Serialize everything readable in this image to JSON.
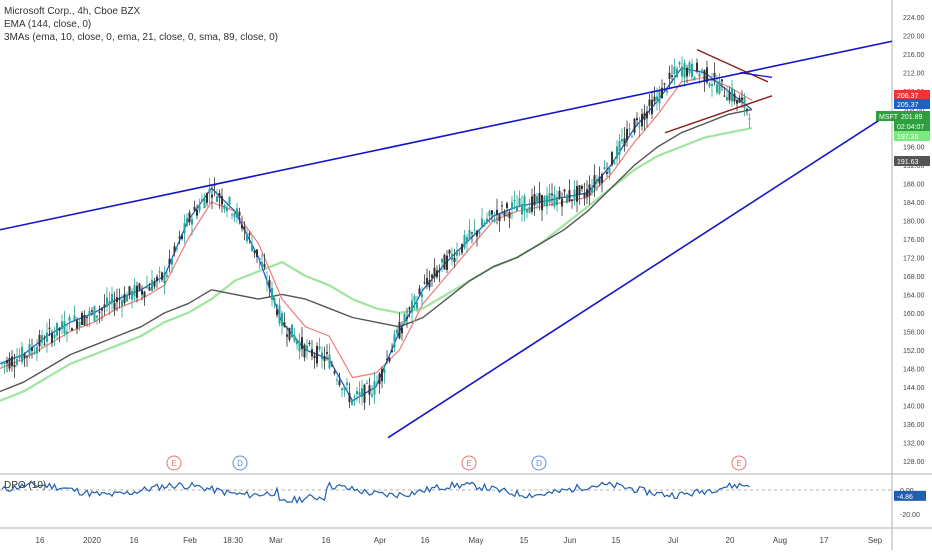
{
  "header": {
    "title": "Microsoft Corp., 4h, Cboe BZX",
    "ema_label": "EMA (144, close, 0)",
    "mas_label": "3MAs (ema, 10, close, 0, ema, 21, close, 0, sma, 89, close, 0)"
  },
  "dpo": {
    "label": "DPO (10)"
  },
  "colors": {
    "up": "#26a69a",
    "down": "#333333",
    "trendline": "#1515c8",
    "triangle": "#8b1a1a",
    "ema10": "#1e5fd0",
    "ema21": "#ef7b7b",
    "sma89": "#555555",
    "ema144": "#9fe59f",
    "dpo": "#1e5fb0"
  },
  "chart_data": {
    "type": "line",
    "title": "Microsoft Corp., 4h, Cboe BZX",
    "ylim": [
      126,
      226
    ],
    "y_ticks": [
      128,
      132,
      136,
      140,
      144,
      148,
      152,
      156,
      160,
      164,
      168,
      172,
      176,
      180,
      184,
      188,
      192,
      196,
      200,
      204,
      208,
      212,
      216,
      220,
      224
    ],
    "x_ticks": [
      "16",
      "2020",
      "16",
      "Feb",
      "18:30",
      "Mar",
      "16",
      "Apr",
      "16",
      "May",
      "15",
      "Jun",
      "15",
      "Jul",
      "20",
      "Aug",
      "17",
      "Sep"
    ],
    "ema10": [
      149,
      151,
      155,
      158,
      160,
      163,
      165,
      168,
      180,
      187,
      182,
      172,
      158,
      152,
      150,
      141,
      144,
      156,
      165,
      171,
      176,
      181,
      183,
      184,
      185,
      186,
      192,
      200,
      206,
      213,
      212,
      208,
      204
    ],
    "ema21": [
      148,
      150,
      153,
      156,
      158,
      161,
      163,
      166,
      176,
      184,
      182,
      175,
      163,
      157,
      155,
      146,
      147,
      152,
      162,
      168,
      174,
      180,
      182,
      183,
      184,
      185,
      190,
      197,
      203,
      210,
      211,
      209,
      206
    ],
    "sma89": [
      143,
      145,
      148,
      151,
      153,
      155,
      157,
      160,
      162,
      165,
      164,
      163,
      164,
      163,
      161,
      159,
      158,
      157,
      159,
      163,
      167,
      170,
      172,
      175,
      178,
      182,
      187,
      192,
      196,
      199,
      201,
      203,
      204
    ],
    "ema144": [
      141,
      143,
      146,
      149,
      151,
      153,
      155,
      158,
      160,
      163,
      167,
      169,
      171,
      168,
      166,
      163,
      161,
      160,
      161,
      164,
      167,
      170,
      172,
      175,
      179,
      183,
      187,
      191,
      194,
      196,
      198,
      199,
      200
    ],
    "trendlines": [
      {
        "name": "resistance",
        "x1": 0,
        "y1": 178.0,
        "x2": 1.0,
        "y2": 218.8
      },
      {
        "name": "support",
        "x1": 0.435,
        "y1": 133.0,
        "x2": 1.0,
        "y2": 203.5
      }
    ],
    "price_labels": [
      {
        "text": "206.37",
        "color": "#e53935"
      },
      {
        "text": "205.37",
        "color": "#1e5fd0"
      },
      {
        "text": "MSFT",
        "color": "#2e9e3e"
      },
      {
        "text": "201.89",
        "color": "#2e9e3e"
      },
      {
        "text": "02:04:07",
        "color": "#2e9e3e"
      },
      {
        "text": "197.35",
        "color": "#7de87d"
      },
      {
        "text": "191.63",
        "color": "#555555"
      }
    ],
    "events": [
      {
        "label": "E",
        "type": "earnings"
      },
      {
        "label": "D",
        "type": "dividend"
      },
      {
        "label": "E",
        "type": "earnings"
      },
      {
        "label": "D",
        "type": "dividend"
      },
      {
        "label": "E",
        "type": "earnings"
      }
    ],
    "dpo_ticks": [
      "0.00",
      "-20.00"
    ],
    "dpo_value_label": "-4.86"
  }
}
